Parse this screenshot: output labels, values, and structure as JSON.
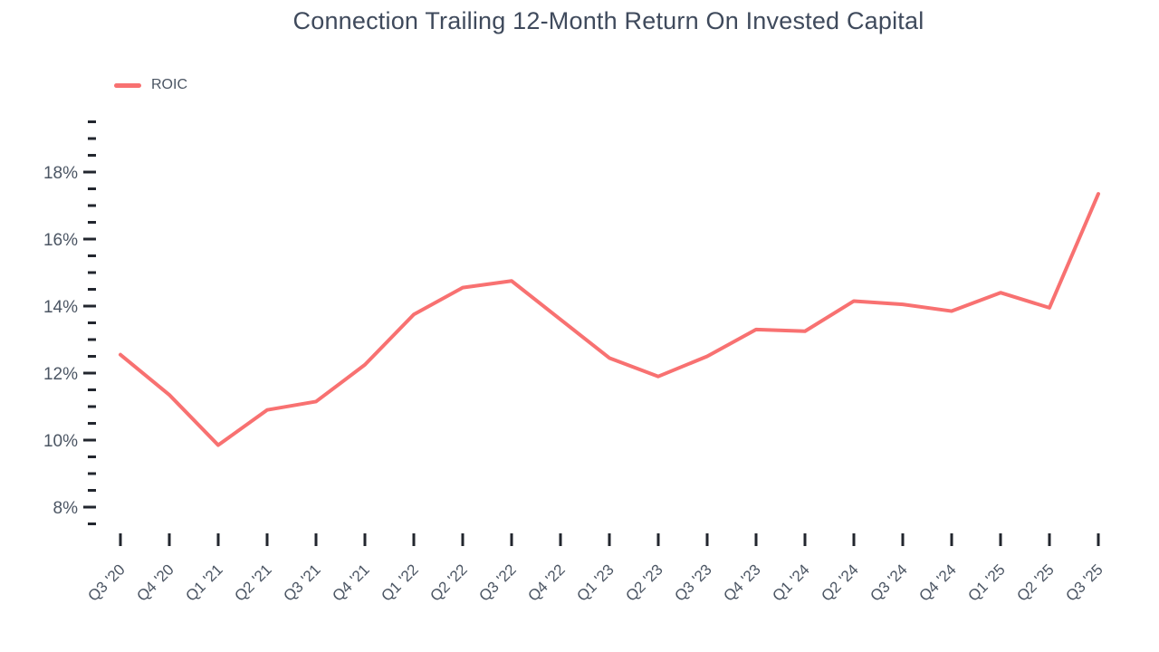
{
  "title": "Connection Trailing 12-Month Return On Invested Capital",
  "legend": {
    "label": "ROIC",
    "color": "#f87171"
  },
  "colors": {
    "line": "#f87171",
    "tick": "#22262e",
    "axis_text": "#4b5563",
    "title_text": "#3f4a5c"
  },
  "chart_data": {
    "type": "line",
    "title": "Connection Trailing 12-Month Return On Invested Capital",
    "xlabel": "",
    "ylabel": "",
    "categories": [
      "Q3 '20",
      "Q4 '20",
      "Q1 '21",
      "Q2 '21",
      "Q3 '21",
      "Q4 '21",
      "Q1 '22",
      "Q2 '22",
      "Q3 '22",
      "Q4 '22",
      "Q1 '23",
      "Q2 '23",
      "Q3 '23",
      "Q4 '23",
      "Q1 '24",
      "Q2 '24",
      "Q3 '24",
      "Q4 '24",
      "Q1 '25",
      "Q2 '25",
      "Q3 '25"
    ],
    "series": [
      {
        "name": "ROIC",
        "values": [
          12.55,
          11.35,
          9.85,
          10.9,
          11.15,
          12.25,
          13.75,
          14.55,
          14.75,
          13.6,
          12.45,
          11.9,
          12.5,
          13.3,
          13.25,
          14.15,
          14.05,
          13.85,
          14.4,
          13.95,
          17.35
        ]
      }
    ],
    "y_ticks": [
      18,
      16,
      14,
      12,
      10,
      8
    ],
    "y_tick_labels": [
      "18%",
      "16%",
      "14%",
      "12%",
      "10%",
      "8%"
    ],
    "ylim": [
      7.5,
      19.5
    ],
    "y_minor_step": 0.5,
    "grid": false,
    "legend_position": "top-left"
  }
}
